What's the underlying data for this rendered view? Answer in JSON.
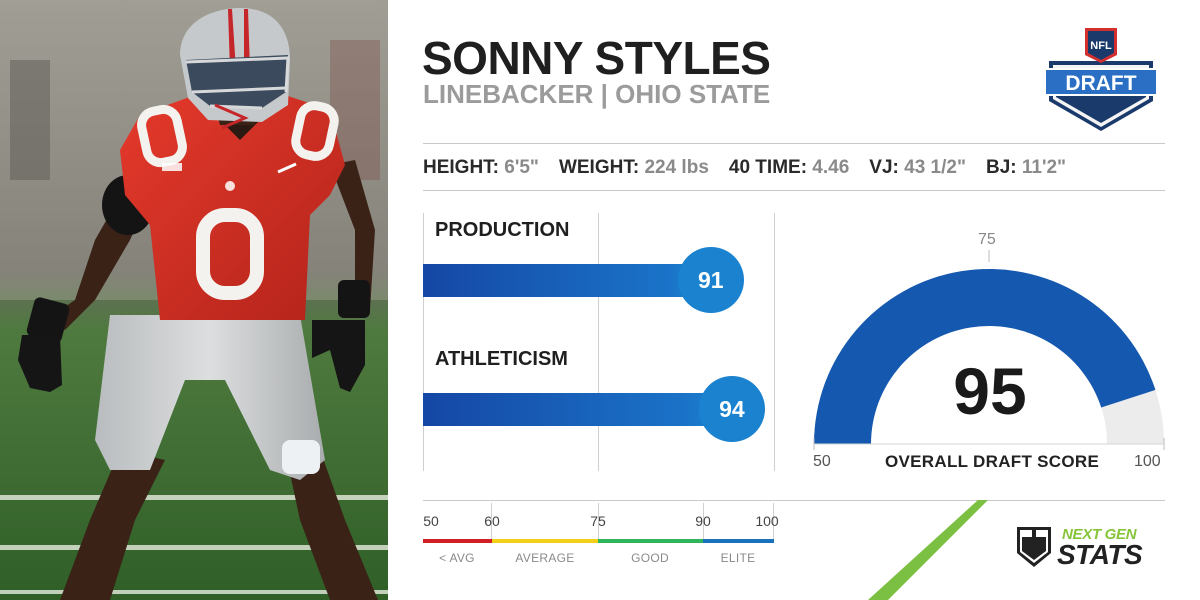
{
  "player": {
    "name": "SONNY STYLES",
    "position_school": "LINEBACKER | OHIO STATE",
    "jersey_number": "0"
  },
  "logo": {
    "badge_text": "NFL",
    "banner_text": "DRAFT"
  },
  "measurements": [
    {
      "label": "HEIGHT:",
      "value": "6'5\""
    },
    {
      "label": "WEIGHT:",
      "value": "224 lbs"
    },
    {
      "label": "40 TIME:",
      "value": "4.46"
    },
    {
      "label": "VJ:",
      "value": "43 1/2\""
    },
    {
      "label": "BJ:",
      "value": "11'2\""
    }
  ],
  "bars": [
    {
      "label": "PRODUCTION",
      "score": "91"
    },
    {
      "label": "ATHLETICISM",
      "score": "94"
    }
  ],
  "scale": {
    "ticks": [
      "50",
      "60",
      "75",
      "90",
      "100"
    ],
    "categories": [
      "< AVG",
      "AVERAGE",
      "GOOD",
      "ELITE"
    ],
    "colors": [
      "#d01f25",
      "#f2d019",
      "#2fb55b",
      "#1a72bd"
    ]
  },
  "gauge": {
    "score": "95",
    "min": "50",
    "max": "100",
    "mid": "75",
    "title": "OVERALL DRAFT SCORE",
    "fill_color": "#1558b0",
    "track_color": "#ececec"
  },
  "branding": {
    "line1": "NEXT GEN",
    "line2": "STATS",
    "accent": "#7bc043"
  }
}
